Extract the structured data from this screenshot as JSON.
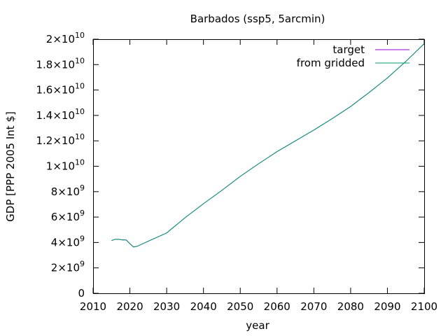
{
  "chart_data": {
    "type": "line",
    "title": "Barbados (ssp5, 5arcmin)",
    "xlabel": "year",
    "ylabel": "GDP [PPP 2005 Int $]",
    "xlim": [
      2010,
      2100
    ],
    "ylim": [
      0,
      20000000000
    ],
    "x_ticks": [
      2010,
      2020,
      2030,
      2040,
      2050,
      2060,
      2070,
      2080,
      2090,
      2100
    ],
    "y_ticks": [
      {
        "value": 0,
        "mantissa": "0",
        "exponent": ""
      },
      {
        "value": 2000000000,
        "mantissa": "2×10",
        "exponent": "9"
      },
      {
        "value": 4000000000,
        "mantissa": "4×10",
        "exponent": "9"
      },
      {
        "value": 6000000000,
        "mantissa": "6×10",
        "exponent": "9"
      },
      {
        "value": 8000000000,
        "mantissa": "8×10",
        "exponent": "9"
      },
      {
        "value": 10000000000,
        "mantissa": "1×10",
        "exponent": "10"
      },
      {
        "value": 12000000000,
        "mantissa": "1.2×10",
        "exponent": "10"
      },
      {
        "value": 14000000000,
        "mantissa": "1.4×10",
        "exponent": "10"
      },
      {
        "value": 16000000000,
        "mantissa": "1.6×10",
        "exponent": "10"
      },
      {
        "value": 18000000000,
        "mantissa": "1.8×10",
        "exponent": "10"
      },
      {
        "value": 20000000000,
        "mantissa": "2×10",
        "exponent": "10"
      }
    ],
    "grid": false,
    "legend": "top-right",
    "x": [
      2015,
      2016,
      2017,
      2018,
      2019,
      2020,
      2021,
      2022,
      2025,
      2030,
      2035,
      2040,
      2045,
      2050,
      2055,
      2060,
      2065,
      2070,
      2075,
      2080,
      2085,
      2090,
      2095,
      2100
    ],
    "series": [
      {
        "name": "target",
        "color": "#9400d3",
        "values": [
          4150000000,
          4250000000,
          4250000000,
          4200000000,
          4200000000,
          3900000000,
          3650000000,
          3700000000,
          4100000000,
          4750000000,
          5950000000,
          7050000000,
          8100000000,
          9200000000,
          10200000000,
          11150000000,
          12000000000,
          12850000000,
          13750000000,
          14700000000,
          15800000000,
          16950000000,
          18250000000,
          19650000000
        ]
      },
      {
        "name": "from gridded",
        "color": "#009e73",
        "values": [
          4150000000,
          4250000000,
          4250000000,
          4200000000,
          4200000000,
          3900000000,
          3650000000,
          3700000000,
          4100000000,
          4750000000,
          5950000000,
          7050000000,
          8100000000,
          9200000000,
          10200000000,
          11150000000,
          12000000000,
          12850000000,
          13750000000,
          14700000000,
          15800000000,
          16950000000,
          18250000000,
          19650000000
        ]
      }
    ]
  }
}
